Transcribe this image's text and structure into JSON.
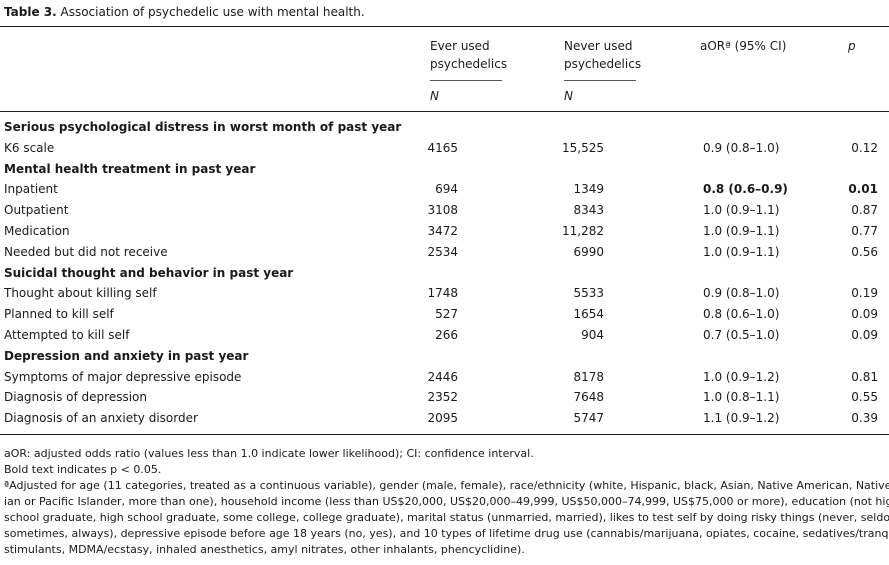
{
  "caption": {
    "label": "Table 3.",
    "title": "Association of psychedelic use with mental health."
  },
  "headers": {
    "ever_line1": "Ever used",
    "ever_line2": "psychedelics",
    "never_line1": "Never used",
    "never_line2": "psychedelics",
    "aor": "aORª (95% CI)",
    "p": "p",
    "n_ever": "N",
    "n_never": "N"
  },
  "rows": [
    {
      "type": "section",
      "label": "Serious psychological distress in worst month of past year"
    },
    {
      "type": "data",
      "label": "K6 scale",
      "ever": "4165",
      "never": "15,525",
      "aor": "0.9 (0.8–1.0)",
      "p": "0.12",
      "bold": false
    },
    {
      "type": "section",
      "label": "Mental health treatment in past year"
    },
    {
      "type": "data",
      "label": "Inpatient",
      "ever": "694",
      "never": "1349",
      "aor": "0.8 (0.6–0.9)",
      "p": "0.01",
      "bold": true
    },
    {
      "type": "data",
      "label": "Outpatient",
      "ever": "3108",
      "never": "8343",
      "aor": "1.0 (0.9–1.1)",
      "p": "0.87",
      "bold": false
    },
    {
      "type": "data",
      "label": "Medication",
      "ever": "3472",
      "never": "11,282",
      "aor": "1.0 (0.9–1.1)",
      "p": "0.77",
      "bold": false
    },
    {
      "type": "data",
      "label": "Needed but did not receive",
      "ever": "2534",
      "never": "6990",
      "aor": "1.0 (0.9–1.1)",
      "p": "0.56",
      "bold": false
    },
    {
      "type": "section",
      "label": "Suicidal thought and behavior in past year"
    },
    {
      "type": "data",
      "label": "Thought about killing self",
      "ever": "1748",
      "never": "5533",
      "aor": "0.9 (0.8–1.0)",
      "p": "0.19",
      "bold": false
    },
    {
      "type": "data",
      "label": "Planned to kill self",
      "ever": "527",
      "never": "1654",
      "aor": "0.8 (0.6–1.0)",
      "p": "0.09",
      "bold": false
    },
    {
      "type": "data",
      "label": "Attempted to kill self",
      "ever": "266",
      "never": "904",
      "aor": "0.7 (0.5–1.0)",
      "p": "0.09",
      "bold": false
    },
    {
      "type": "section",
      "label": "Depression and anxiety in past year"
    },
    {
      "type": "data",
      "label": "Symptoms of major depressive episode",
      "ever": "2446",
      "never": "8178",
      "aor": "1.0 (0.9–1.2)",
      "p": "0.81",
      "bold": false
    },
    {
      "type": "data",
      "label": "Diagnosis of depression",
      "ever": "2352",
      "never": "7648",
      "aor": "1.0 (0.8–1.1)",
      "p": "0.55",
      "bold": false
    },
    {
      "type": "data",
      "label": "Diagnosis of an anxiety disorder",
      "ever": "2095",
      "never": "5747",
      "aor": "1.1 (0.9–1.2)",
      "p": "0.39",
      "bold": false
    }
  ],
  "footnotes": [
    "aOR: adjusted odds ratio (values less than 1.0 indicate lower likelihood); CI: confidence interval.",
    "Bold text indicates p < 0.05.",
    "ªAdjusted for age (11 categories, treated as a continuous variable), gender (male, female), race/ethnicity (white, Hispanic, black, Asian, Native American, Native Hawai-",
    "ian or Pacific Islander, more than one), household income (less than US$20,000, US$20,000–49,999, US$50,000–74,999, US$75,000 or more), education (not high",
    "school graduate, high school graduate, some college, college graduate), marital status (unmarried, married), likes to test self by doing risky things (never, seldom,",
    "sometimes, always), depressive episode before age 18 years (no, yes), and 10 types of lifetime drug use (cannabis/marijuana, opiates, cocaine, sedatives/tranquilizers,",
    "stimulants, MDMA/ecstasy, inhaled anesthetics, amyl nitrates, other inhalants, phencyclidine)."
  ]
}
